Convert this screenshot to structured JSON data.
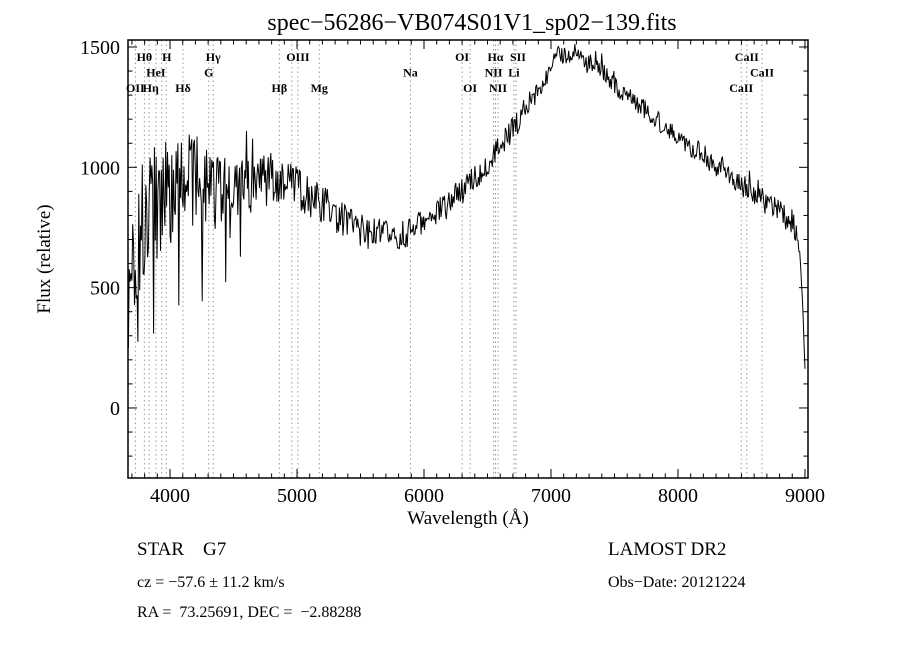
{
  "title": "spec−56286−VB074S01V1_sp02−139.fits",
  "chart_data": {
    "type": "line",
    "title": "spec−56286−VB074S01V1_sp02−139.fits",
    "xlabel": "Wavelength (Å)",
    "ylabel": "Flux (relative)",
    "xlim": [
      3669,
      9024
    ],
    "ylim": [
      -291,
      1529
    ],
    "xticks": [
      4000,
      5000,
      6000,
      7000,
      8000,
      9000
    ],
    "yticks": [
      0,
      500,
      1000,
      1500
    ],
    "grid": false,
    "legend": "none",
    "line_color": "#000000",
    "marker_line_color": "#999999",
    "noise_seed": 1337,
    "points_count": 780,
    "envelope": [
      [
        3670,
        450
      ],
      [
        3700,
        560
      ],
      [
        3740,
        660
      ],
      [
        3800,
        780
      ],
      [
        3850,
        850
      ],
      [
        3950,
        900
      ],
      [
        4050,
        930
      ],
      [
        4200,
        940
      ],
      [
        4350,
        930
      ],
      [
        4500,
        900
      ],
      [
        4650,
        930
      ],
      [
        4800,
        950
      ],
      [
        4950,
        930
      ],
      [
        5100,
        880
      ],
      [
        5250,
        830
      ],
      [
        5400,
        770
      ],
      [
        5550,
        730
      ],
      [
        5700,
        715
      ],
      [
        5850,
        720
      ],
      [
        6000,
        770
      ],
      [
        6150,
        830
      ],
      [
        6300,
        900
      ],
      [
        6450,
        990
      ],
      [
        6600,
        1090
      ],
      [
        6750,
        1200
      ],
      [
        6900,
        1330
      ],
      [
        7000,
        1420
      ],
      [
        7100,
        1480
      ],
      [
        7200,
        1465
      ],
      [
        7300,
        1430
      ],
      [
        7450,
        1370
      ],
      [
        7600,
        1300
      ],
      [
        7750,
        1235
      ],
      [
        7900,
        1170
      ],
      [
        8050,
        1110
      ],
      [
        8200,
        1050
      ],
      [
        8350,
        990
      ],
      [
        8500,
        930
      ],
      [
        8650,
        870
      ],
      [
        8800,
        810
      ],
      [
        8900,
        770
      ],
      [
        8950,
        700
      ],
      [
        8980,
        460
      ],
      [
        9000,
        140
      ]
    ],
    "noise_amplitude": [
      [
        3670,
        330
      ],
      [
        3750,
        300
      ],
      [
        3850,
        280
      ],
      [
        3950,
        260
      ],
      [
        4100,
        220
      ],
      [
        4300,
        170
      ],
      [
        4500,
        130
      ],
      [
        4800,
        110
      ],
      [
        5100,
        85
      ],
      [
        5400,
        75
      ],
      [
        5700,
        65
      ],
      [
        6000,
        60
      ],
      [
        6300,
        60
      ],
      [
        6600,
        55
      ],
      [
        7000,
        48
      ],
      [
        7400,
        45
      ],
      [
        7800,
        42
      ],
      [
        8200,
        45
      ],
      [
        8600,
        50
      ],
      [
        8900,
        55
      ],
      [
        9000,
        35
      ]
    ],
    "lines": [
      3727,
      3798,
      3835,
      3889,
      3934,
      3970,
      4102,
      4305,
      4340,
      4861,
      4959,
      5007,
      5175,
      5893,
      6300,
      6363,
      6548,
      6563,
      6583,
      6708,
      6724,
      8498,
      8542,
      8662
    ],
    "line_labels": [
      {
        "text": "Hθ",
        "wl": 3798,
        "row": 1
      },
      {
        "text": "H",
        "wl": 3975,
        "row": 1
      },
      {
        "text": "Hγ",
        "wl": 4340,
        "row": 1
      },
      {
        "text": "OIII",
        "wl": 5007,
        "row": 1
      },
      {
        "text": "OI",
        "wl": 6300,
        "row": 1
      },
      {
        "text": "Hα",
        "wl": 6563,
        "row": 1
      },
      {
        "text": "SII",
        "wl": 6740,
        "row": 1
      },
      {
        "text": "CaII",
        "wl": 8542,
        "row": 1
      },
      {
        "text": "HeI",
        "wl": 3889,
        "row": 2
      },
      {
        "text": "G",
        "wl": 4305,
        "row": 2
      },
      {
        "text": "Na",
        "wl": 5893,
        "row": 2
      },
      {
        "text": "NII",
        "wl": 6548,
        "row": 2
      },
      {
        "text": "Li",
        "wl": 6708,
        "row": 2
      },
      {
        "text": "CaII",
        "wl": 8662,
        "row": 2
      },
      {
        "text": "OII",
        "wl": 3727,
        "row": 3
      },
      {
        "text": "Hη",
        "wl": 3848,
        "row": 3
      },
      {
        "text": "Hδ",
        "wl": 4102,
        "row": 3
      },
      {
        "text": "Hβ",
        "wl": 4861,
        "row": 3
      },
      {
        "text": "Mg",
        "wl": 5175,
        "row": 3
      },
      {
        "text": "OI",
        "wl": 6363,
        "row": 3
      },
      {
        "text": "NII",
        "wl": 6583,
        "row": 3
      },
      {
        "text": "CaII",
        "wl": 8498,
        "row": 3
      }
    ]
  },
  "footer": {
    "class_line": "STAR    G7",
    "survey": "LAMOST DR2",
    "cz_line": "cz = −57.6 ± 11.2 km/s",
    "obs_date": "Obs−Date: 20121224",
    "coords_line": "RA =  73.25691, DEC =  −2.88288"
  }
}
